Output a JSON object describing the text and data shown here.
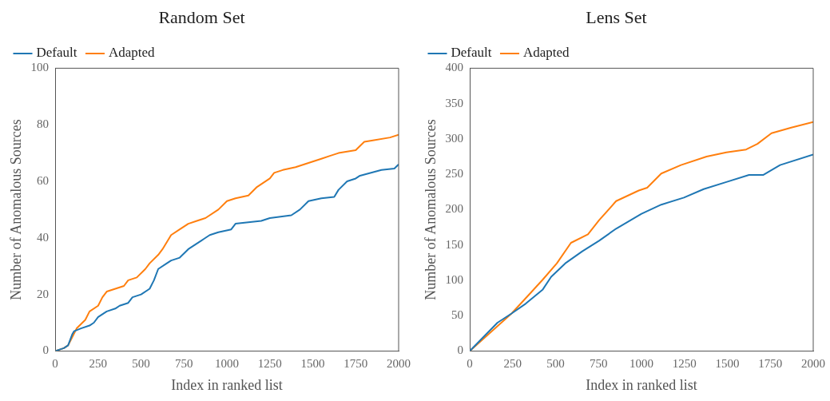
{
  "chart_data": [
    {
      "type": "line",
      "title": "Random Set",
      "xlabel": "Index in ranked list",
      "ylabel": "Number of Anomalous Sources",
      "xlim": [
        0,
        2000
      ],
      "xticks": [
        0,
        250,
        500,
        750,
        1000,
        1250,
        1500,
        1750,
        2000
      ],
      "ylim": [
        0,
        100
      ],
      "yticks": [
        0,
        20,
        40,
        60,
        80,
        100
      ],
      "grid": false,
      "legend": "top left",
      "marker": "none",
      "line_style": "solid",
      "series": [
        {
          "name": "Default",
          "color": "#1f77b4",
          "x": [
            0,
            50,
            75,
            100,
            110,
            150,
            200,
            225,
            250,
            300,
            350,
            375,
            425,
            450,
            500,
            550,
            575,
            600,
            650,
            675,
            725,
            775,
            800,
            850,
            900,
            950,
            1025,
            1050,
            1200,
            1250,
            1375,
            1425,
            1475,
            1550,
            1625,
            1650,
            1700,
            1750,
            1775,
            1900,
            1975,
            2000
          ],
          "values": [
            0,
            1,
            2,
            6,
            7,
            8,
            9,
            10,
            12,
            14,
            15,
            16,
            17,
            19,
            20,
            22,
            25,
            29,
            31,
            32,
            33,
            36,
            37,
            39,
            41,
            42,
            43,
            45,
            46,
            47,
            48,
            50,
            53,
            54,
            54.5,
            57,
            60,
            61,
            62,
            64,
            64.5,
            66
          ]
        },
        {
          "name": "Adapted",
          "color": "#ff7f0e",
          "x": [
            0,
            50,
            75,
            100,
            125,
            175,
            200,
            250,
            275,
            300,
            350,
            400,
            425,
            475,
            525,
            550,
            600,
            625,
            675,
            725,
            775,
            825,
            875,
            950,
            1000,
            1050,
            1125,
            1175,
            1250,
            1275,
            1325,
            1400,
            1450,
            1550,
            1600,
            1650,
            1700,
            1750,
            1800,
            1850,
            1950,
            2000
          ],
          "values": [
            0,
            1,
            2,
            5,
            8,
            11,
            14,
            16,
            19,
            21,
            22,
            23,
            25,
            26,
            29,
            31,
            34,
            36,
            41,
            43,
            45,
            46,
            47,
            50,
            53,
            54,
            55,
            58,
            61,
            63,
            64,
            65,
            66,
            68,
            69,
            70,
            70.5,
            71,
            74,
            74.5,
            75.5,
            76.5
          ]
        }
      ]
    },
    {
      "type": "line",
      "title": "Lens Set",
      "xlabel": "Index in ranked list",
      "ylabel": "Number of Anomalous Sources",
      "xlim": [
        0,
        2000
      ],
      "xticks": [
        0,
        250,
        500,
        750,
        1000,
        1250,
        1500,
        1750,
        2000
      ],
      "ylim": [
        0,
        400
      ],
      "yticks": [
        0,
        50,
        100,
        150,
        200,
        250,
        300,
        350,
        400
      ],
      "grid": false,
      "legend": "top left",
      "marker": "none",
      "line_style": "solid",
      "series": [
        {
          "name": "Default",
          "color": "#1f77b4",
          "x": [
            0,
            161,
            243,
            326,
            425,
            474,
            556,
            655,
            753,
            852,
            1000,
            1115,
            1247,
            1362,
            1494,
            1626,
            1708,
            1807,
            2000
          ],
          "values": [
            0,
            40,
            53,
            67,
            87,
            105,
            124,
            141,
            156,
            173,
            194,
            207,
            217,
            229,
            239,
            249,
            249,
            263,
            278
          ]
        },
        {
          "name": "Adapted",
          "color": "#ff7f0e",
          "x": [
            0,
            243,
            342,
            425,
            507,
            589,
            688,
            753,
            852,
            984,
            1033,
            1115,
            1230,
            1379,
            1494,
            1609,
            1675,
            1757,
            1872,
            2000
          ],
          "values": [
            0,
            53,
            79,
            101,
            124,
            153,
            165,
            185,
            212,
            227,
            231,
            251,
            263,
            275,
            281,
            285,
            293,
            308,
            316,
            324
          ]
        }
      ]
    }
  ]
}
